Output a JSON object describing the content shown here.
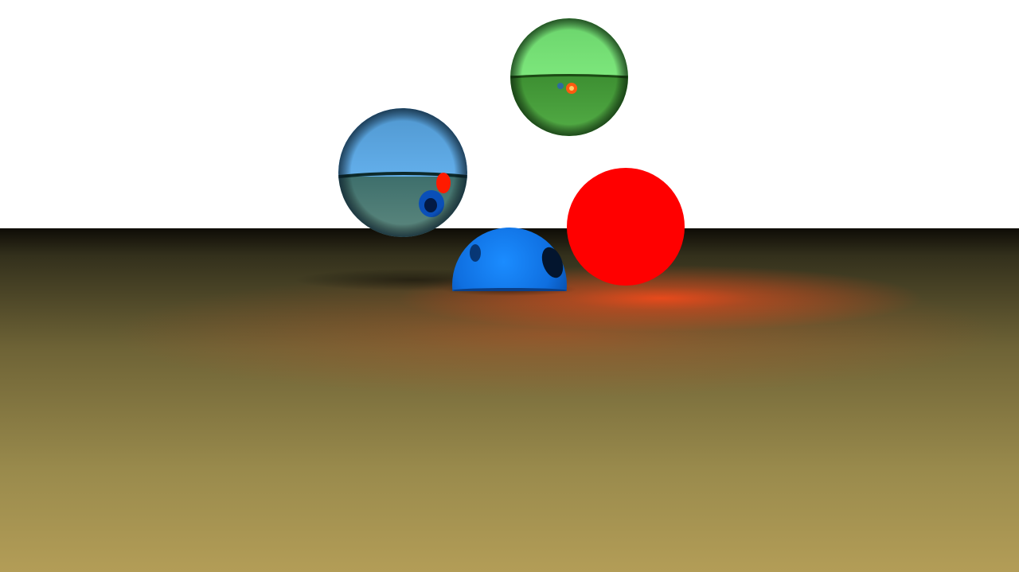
{
  "scene": {
    "sky_color": "#ffffff",
    "floor_colors": {
      "horizon": "#0e0c06",
      "mid": "#6e6336",
      "near": "#b39d57"
    },
    "objects": [
      {
        "name": "blue-glass-sphere",
        "material": "glass",
        "color": "#5aa7e4"
      },
      {
        "name": "green-glass-sphere",
        "material": "glass",
        "color": "#74e274"
      },
      {
        "name": "red-emissive-sphere",
        "material": "emissive",
        "color": "#ff0000"
      },
      {
        "name": "blue-metallic-sphere",
        "material": "metal",
        "color": "#1078ee"
      }
    ],
    "red_glow_color": "#ff4a1a"
  }
}
